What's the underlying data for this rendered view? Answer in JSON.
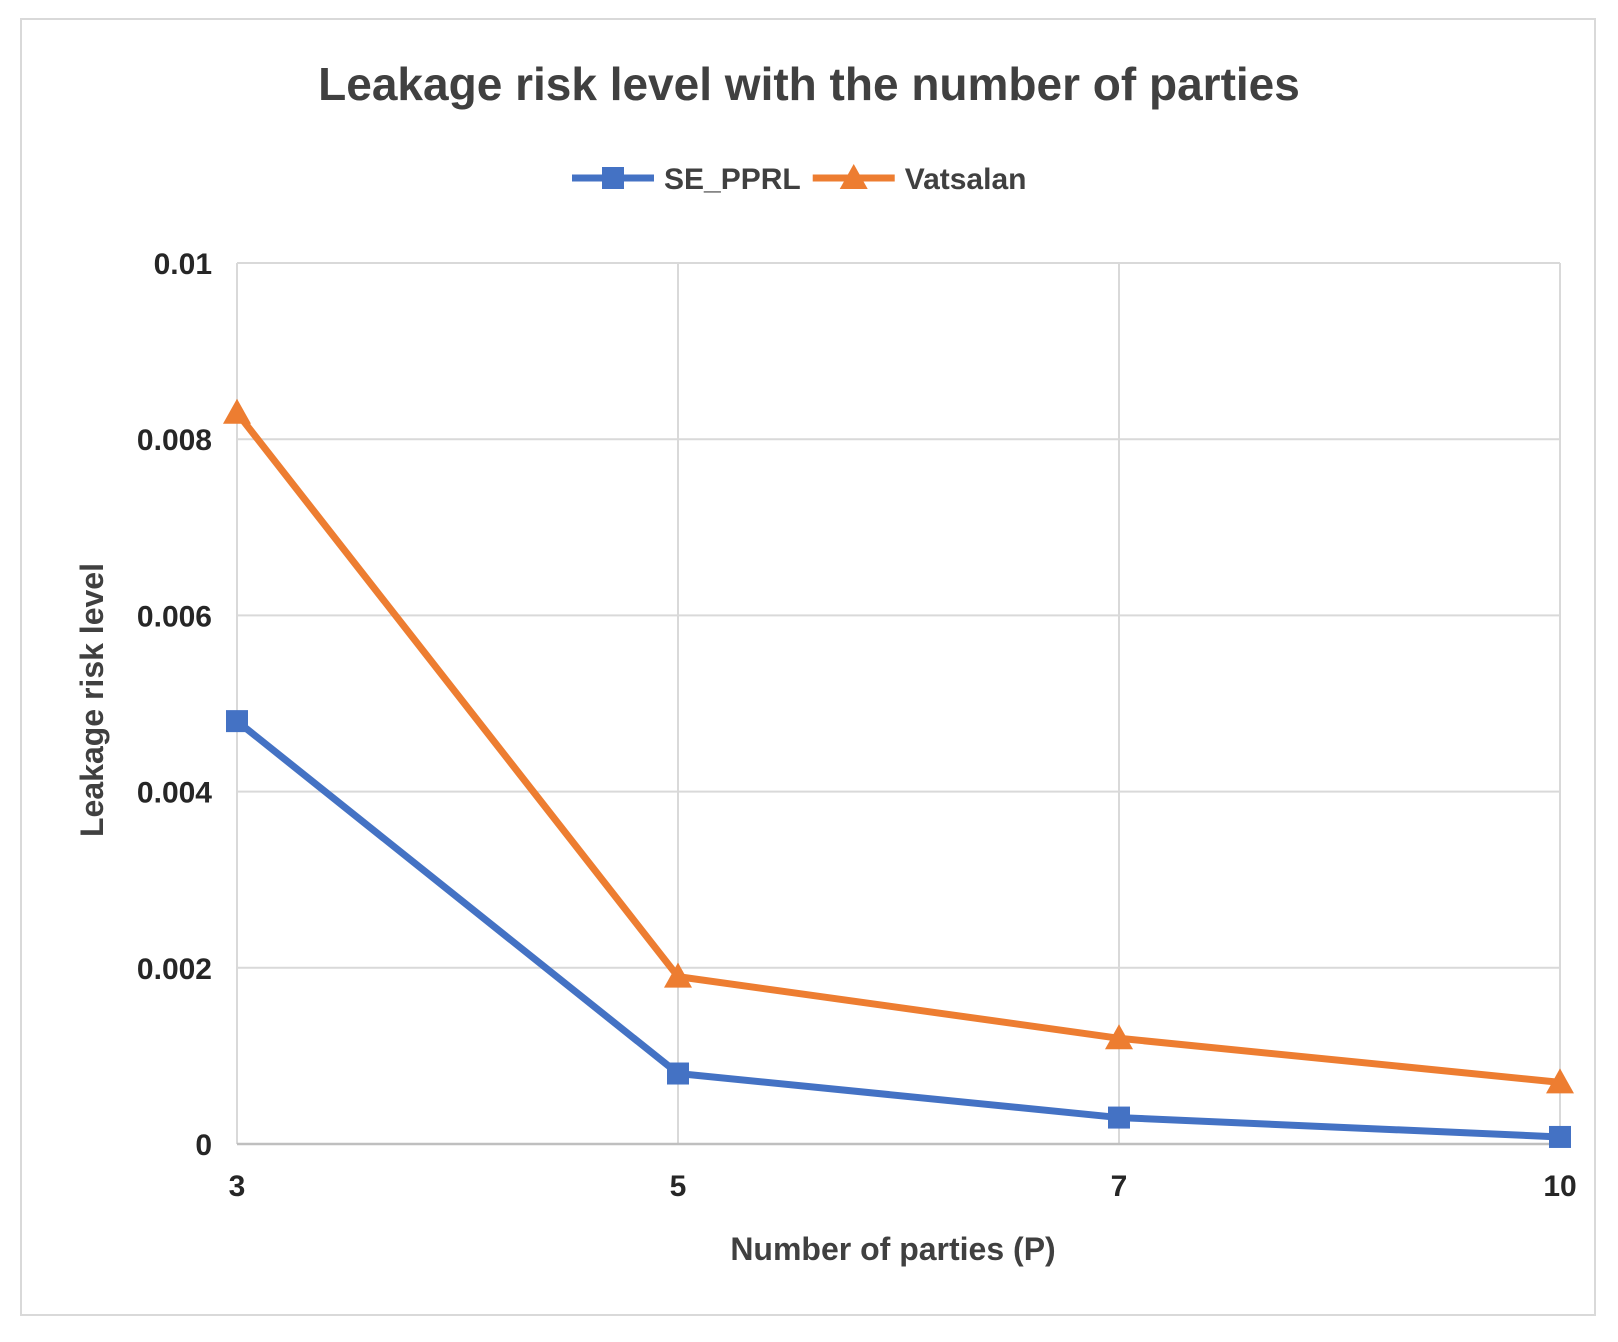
{
  "colors": {
    "SE_PPRL": "#4472c4",
    "Vatsalan": "#ed7d31",
    "grid": "#d9d9d9",
    "frame": "#d9d9d9"
  },
  "chart_data": {
    "type": "line",
    "title": "Leakage risk level with the number of parties",
    "xlabel": "Number of parties (P)",
    "ylabel": "Leakage risk level",
    "categories": [
      "3",
      "5",
      "7",
      "10"
    ],
    "ylim": [
      0,
      0.01
    ],
    "yticks": [
      "0",
      "0.002",
      "0.004",
      "0.006",
      "0.008",
      "0.01"
    ],
    "grid": true,
    "legend_position": "top",
    "series": [
      {
        "name": "SE_PPRL",
        "marker": "square",
        "values": [
          0.0048,
          0.0008,
          0.0003,
          8e-05
        ]
      },
      {
        "name": "Vatsalan",
        "marker": "triangle",
        "values": [
          0.0083,
          0.0019,
          0.0012,
          0.0007
        ]
      }
    ]
  }
}
